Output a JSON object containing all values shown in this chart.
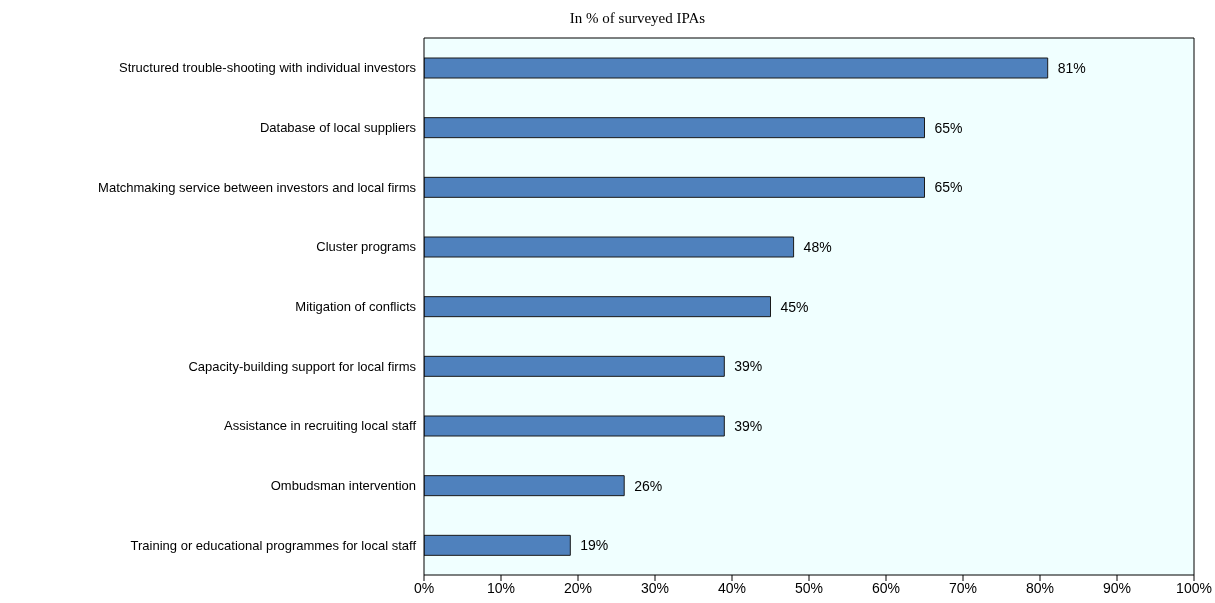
{
  "chart_data": {
    "type": "bar",
    "orientation": "horizontal",
    "title": "In % of surveyed IPAs",
    "categories": [
      "Structured trouble-shooting with individual investors",
      "Database of local suppliers",
      "Matchmaking service between investors and local firms",
      "Cluster programs",
      "Mitigation of conflicts",
      "Capacity-building support for local firms",
      "Assistance in recruiting local staff",
      "Ombudsman intervention",
      "Training or educational programmes for local staff"
    ],
    "values": [
      81,
      65,
      65,
      48,
      45,
      39,
      39,
      26,
      19
    ],
    "value_labels": [
      "81%",
      "65%",
      "65%",
      "48%",
      "45%",
      "39%",
      "39%",
      "26%",
      "19%"
    ],
    "color": "#4f81bd",
    "xlim": [
      0,
      100
    ],
    "xticks": [
      {
        "value": 0,
        "label": "0%"
      },
      {
        "value": 10,
        "label": "10%"
      },
      {
        "value": 20,
        "label": "20%"
      },
      {
        "value": 30,
        "label": "30%"
      },
      {
        "value": 40,
        "label": "40%"
      },
      {
        "value": 50,
        "label": "50%"
      },
      {
        "value": 60,
        "label": "60%"
      },
      {
        "value": 70,
        "label": "70%"
      },
      {
        "value": 80,
        "label": "80%"
      },
      {
        "value": 90,
        "label": "90%"
      },
      {
        "value": 100,
        "label": "100%"
      }
    ],
    "grid": false
  }
}
